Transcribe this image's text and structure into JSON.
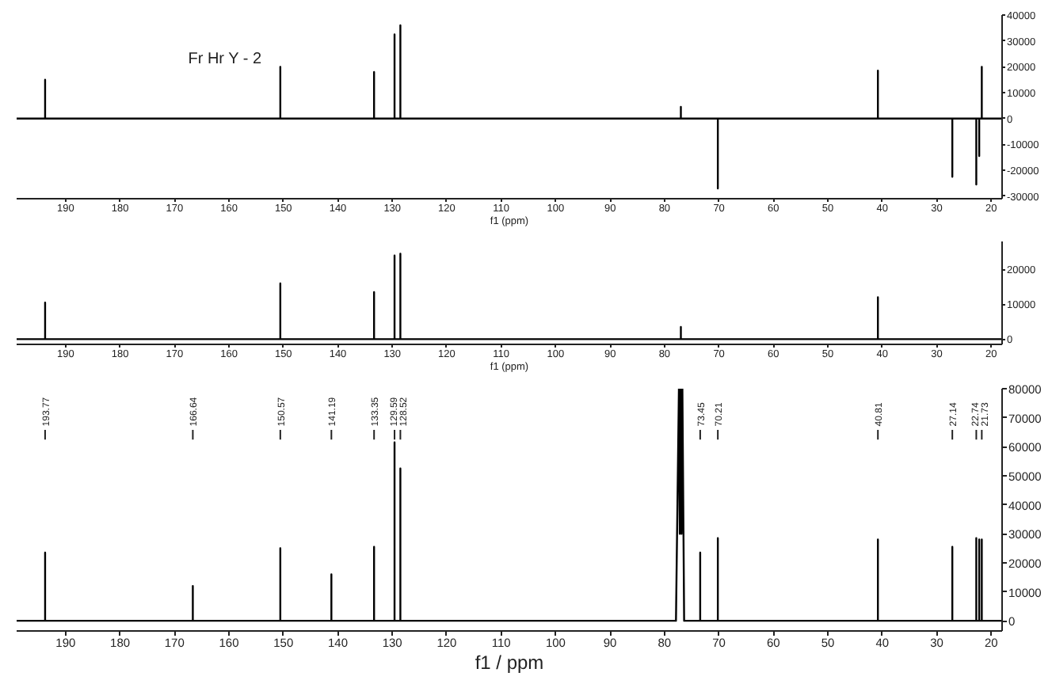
{
  "chart_data": [
    {
      "type": "line",
      "xlabel": "f1 (ppm)",
      "annotations": [
        "Fr Hr Y - 2"
      ],
      "grid": false,
      "x": [
        199,
        193.77,
        193.77,
        193.77,
        150.57,
        150.57,
        150.57,
        133.35,
        133.35,
        133.35,
        129.59,
        129.59,
        129.59,
        128.52,
        128.52,
        128.52,
        77.0,
        77.0,
        77.0,
        70.21,
        70.21,
        70.21,
        40.81,
        40.81,
        40.81,
        27.14,
        27.14,
        27.14,
        22.74,
        22.74,
        22.74,
        22.2,
        22.2,
        22.2,
        21.73,
        21.73,
        21.73,
        18
      ],
      "series": [
        {
          "color": "#000000",
          "values": [
            0,
            0,
            15000,
            0,
            0,
            20000,
            0,
            0,
            18000,
            0,
            0,
            32500,
            0,
            0,
            36000,
            0,
            0,
            4500,
            0,
            0,
            -27000,
            0,
            0,
            18500,
            0,
            0,
            -22500,
            0,
            0,
            -25500,
            0,
            0,
            -14500,
            0,
            0,
            20000,
            0,
            0
          ]
        }
      ],
      "xlim": [
        199,
        18
      ],
      "ylim": [
        -31000,
        40000
      ],
      "xticks": [
        190,
        180,
        170,
        160,
        150,
        140,
        130,
        120,
        110,
        100,
        90,
        80,
        70,
        60,
        50,
        40,
        30,
        20
      ],
      "yticks": [
        -30000,
        -20000,
        -10000,
        0,
        10000,
        20000,
        30000,
        40000
      ]
    },
    {
      "type": "line",
      "xlabel": "f1 (ppm)",
      "grid": false,
      "x": [
        199,
        193.77,
        193.77,
        193.77,
        150.57,
        150.57,
        150.57,
        133.35,
        133.35,
        133.35,
        129.59,
        129.59,
        129.59,
        128.52,
        128.52,
        128.52,
        77.0,
        77.0,
        77.0,
        40.81,
        40.81,
        40.81,
        18
      ],
      "series": [
        {
          "color": "#000000",
          "values": [
            0,
            0,
            10500,
            0,
            0,
            16000,
            0,
            0,
            13500,
            0,
            0,
            24000,
            0,
            0,
            24500,
            0,
            0,
            3500,
            0,
            0,
            12000,
            0,
            0
          ]
        }
      ],
      "xlim": [
        199,
        18
      ],
      "ylim": [
        -1500,
        28000
      ],
      "xticks": [
        190,
        180,
        170,
        160,
        150,
        140,
        130,
        120,
        110,
        100,
        90,
        80,
        70,
        60,
        50,
        40,
        30,
        20
      ],
      "yticks": [
        0,
        10000,
        20000
      ]
    },
    {
      "type": "line",
      "xlabel": "f1 / ppm",
      "grid": false,
      "x": [
        199,
        193.77,
        193.77,
        193.77,
        166.64,
        166.64,
        166.64,
        150.57,
        150.57,
        150.57,
        141.19,
        141.19,
        141.19,
        133.35,
        133.35,
        133.35,
        129.59,
        129.59,
        129.59,
        128.52,
        128.52,
        128.52,
        77.9,
        77.36,
        77.2,
        77.04,
        76.88,
        76.72,
        76.4,
        73.45,
        73.45,
        73.45,
        70.21,
        70.21,
        70.21,
        40.81,
        40.81,
        40.81,
        27.14,
        27.14,
        27.14,
        22.74,
        22.74,
        22.74,
        22.2,
        22.2,
        22.2,
        21.73,
        21.73,
        21.73,
        18
      ],
      "series": [
        {
          "color": "#000000",
          "values": [
            0,
            0,
            23500,
            0,
            0,
            12000,
            0,
            0,
            25000,
            0,
            0,
            16000,
            0,
            0,
            25500,
            0,
            0,
            61500,
            0,
            0,
            52500,
            0,
            0,
            80000,
            30000,
            80000,
            30000,
            80000,
            0,
            0,
            23500,
            0,
            0,
            28500,
            0,
            0,
            28000,
            0,
            0,
            25500,
            0,
            0,
            28500,
            0,
            0,
            28000,
            0,
            0,
            28000,
            0,
            0
          ]
        }
      ],
      "xlim": [
        199,
        18
      ],
      "ylim": [
        -3500,
        80000
      ],
      "xticks": [
        190,
        180,
        170,
        160,
        150,
        140,
        130,
        120,
        110,
        100,
        90,
        80,
        70,
        60,
        50,
        40,
        30,
        20
      ],
      "yticks": [
        0,
        10000,
        20000,
        30000,
        40000,
        50000,
        60000,
        70000,
        80000
      ],
      "annotations": [
        {
          "text": "193.77",
          "x": 193.77
        },
        {
          "text": "166.64",
          "x": 166.64
        },
        {
          "text": "150.57",
          "x": 150.57
        },
        {
          "text": "141.19",
          "x": 141.19
        },
        {
          "text": "133.35",
          "x": 133.35
        },
        {
          "text": "129.59",
          "x": 129.59
        },
        {
          "text": "128.52",
          "x": 128.52
        },
        {
          "text": "73.45",
          "x": 73.45
        },
        {
          "text": "70.21",
          "x": 70.21
        },
        {
          "text": "40.81",
          "x": 40.81
        },
        {
          "text": "27.14",
          "x": 27.14
        },
        {
          "text": "22.74",
          "x": 22.74
        },
        {
          "text": "21.73",
          "x": 21.73
        }
      ]
    }
  ]
}
